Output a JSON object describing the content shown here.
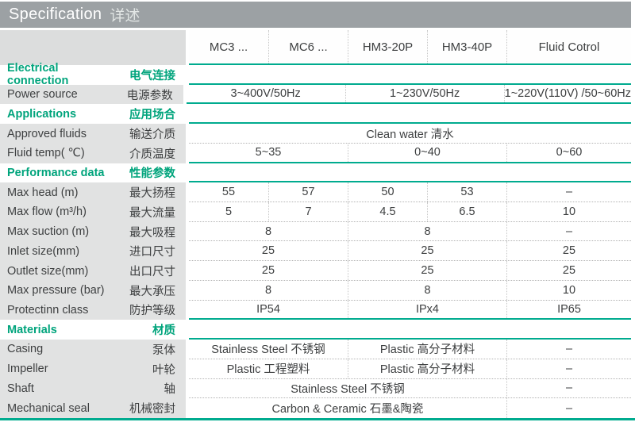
{
  "header": {
    "title_en": "Specification",
    "title_zh": "详述"
  },
  "table": {
    "columns": [
      "MC3 ...",
      "MC6 ...",
      "HM3-20P",
      "HM3-40P",
      "Fluid Cotrol"
    ],
    "rows": [
      {
        "type": "section",
        "key": "electrical-connection",
        "en": "Electrical connection",
        "zh": "电气连接",
        "border": "teal",
        "cells": []
      },
      {
        "type": "data",
        "key": "power-source",
        "en": "Power source",
        "zh": "电源参数",
        "border": "teal",
        "cells": [
          {
            "span": 2,
            "text": "3~400V/50Hz"
          },
          {
            "span": 2,
            "text": "1~230V/50Hz"
          },
          {
            "span": 1,
            "text": "1~220V(110V) /50~60Hz"
          }
        ]
      },
      {
        "type": "section",
        "key": "applications",
        "en": "Applications",
        "zh": "应用场合",
        "border": "teal",
        "cells": []
      },
      {
        "type": "data",
        "key": "approved-fluids",
        "en": "Approved fluids",
        "zh": "输送介质",
        "border": "dot",
        "cells": [
          {
            "span": 5,
            "text": "Clean water 清水"
          }
        ]
      },
      {
        "type": "data",
        "key": "fluid-temp",
        "en": "Fluid temp( ℃)",
        "zh": "介质温度",
        "border": "teal",
        "cells": [
          {
            "span": 2,
            "text": "5~35"
          },
          {
            "span": 2,
            "text": "0~40"
          },
          {
            "span": 1,
            "text": "0~60"
          }
        ]
      },
      {
        "type": "section",
        "key": "performance-data",
        "en": "Performance data",
        "zh": "性能参数",
        "border": "teal",
        "cells": []
      },
      {
        "type": "data",
        "key": "max-head",
        "en": "Max head (m)",
        "zh": "最大扬程",
        "border": "dot",
        "cells": [
          {
            "span": 1,
            "text": "55"
          },
          {
            "span": 1,
            "text": "57"
          },
          {
            "span": 1,
            "text": "50"
          },
          {
            "span": 1,
            "text": "53"
          },
          {
            "span": 1,
            "text": "–"
          }
        ]
      },
      {
        "type": "data",
        "key": "max-flow",
        "en": "Max flow (m³/h)",
        "zh": "最大流量",
        "border": "dot",
        "cells": [
          {
            "span": 1,
            "text": "5"
          },
          {
            "span": 1,
            "text": "7"
          },
          {
            "span": 1,
            "text": "4.5"
          },
          {
            "span": 1,
            "text": "6.5"
          },
          {
            "span": 1,
            "text": "10"
          }
        ]
      },
      {
        "type": "data",
        "key": "max-suction",
        "en": "Max suction (m)",
        "zh": "最大吸程",
        "border": "dot",
        "cells": [
          {
            "span": 2,
            "text": "8"
          },
          {
            "span": 2,
            "text": "8"
          },
          {
            "span": 1,
            "text": "–"
          }
        ]
      },
      {
        "type": "data",
        "key": "inlet-size",
        "en": "Inlet size(mm)",
        "zh": "进口尺寸",
        "border": "dot",
        "cells": [
          {
            "span": 2,
            "text": "25"
          },
          {
            "span": 2,
            "text": "25"
          },
          {
            "span": 1,
            "text": "25"
          }
        ]
      },
      {
        "type": "data",
        "key": "outlet-size",
        "en": "Outlet size(mm)",
        "zh": "出口尺寸",
        "border": "dot",
        "cells": [
          {
            "span": 2,
            "text": "25"
          },
          {
            "span": 2,
            "text": "25"
          },
          {
            "span": 1,
            "text": "25"
          }
        ]
      },
      {
        "type": "data",
        "key": "max-pressure",
        "en": "Max pressure (bar)",
        "zh": "最大承压",
        "border": "dot",
        "cells": [
          {
            "span": 2,
            "text": "8"
          },
          {
            "span": 2,
            "text": "8"
          },
          {
            "span": 1,
            "text": "10"
          }
        ]
      },
      {
        "type": "data",
        "key": "protection-class",
        "en": "Protectinn class",
        "zh": "防护等级",
        "border": "teal",
        "cells": [
          {
            "span": 2,
            "text": "IP54"
          },
          {
            "span": 2,
            "text": "IPx4"
          },
          {
            "span": 1,
            "text": "IP65"
          }
        ]
      },
      {
        "type": "section",
        "key": "materials",
        "en": "Materials",
        "zh": "材质",
        "border": "teal",
        "cells": []
      },
      {
        "type": "data",
        "key": "casing",
        "en": "Casing",
        "zh": "泵体",
        "border": "dot",
        "cells": [
          {
            "span": 2,
            "text": "Stainless Steel 不锈钢"
          },
          {
            "span": 2,
            "text": "Plastic 高分子材料"
          },
          {
            "span": 1,
            "text": "–"
          }
        ]
      },
      {
        "type": "data",
        "key": "impeller",
        "en": "Impeller",
        "zh": "叶轮",
        "border": "dot",
        "cells": [
          {
            "span": 2,
            "text": "Plastic 工程塑料"
          },
          {
            "span": 2,
            "text": "Plastic 高分子材料"
          },
          {
            "span": 1,
            "text": "–"
          }
        ]
      },
      {
        "type": "data",
        "key": "shaft",
        "en": "Shaft",
        "zh": "轴",
        "border": "dot",
        "cells": [
          {
            "span": 4,
            "text": "Stainless Steel 不锈钢"
          },
          {
            "span": 1,
            "text": "–"
          }
        ]
      },
      {
        "type": "data",
        "key": "mechanical-seal",
        "en": "Mechanical seal",
        "zh": "机械密封",
        "border": "none",
        "cells": [
          {
            "span": 4,
            "text": "Carbon & Ceramic 石墨&陶瓷"
          },
          {
            "span": 1,
            "text": "–"
          }
        ]
      }
    ]
  },
  "colors": {
    "teal_line": "#00ab8f",
    "teal_text": "#00a47c",
    "topbar_bg": "#9ca1a4",
    "colhead_label_bg": "#dcdddd",
    "row_label_bg": "#e1e2e2",
    "text": "#3d3f40"
  }
}
